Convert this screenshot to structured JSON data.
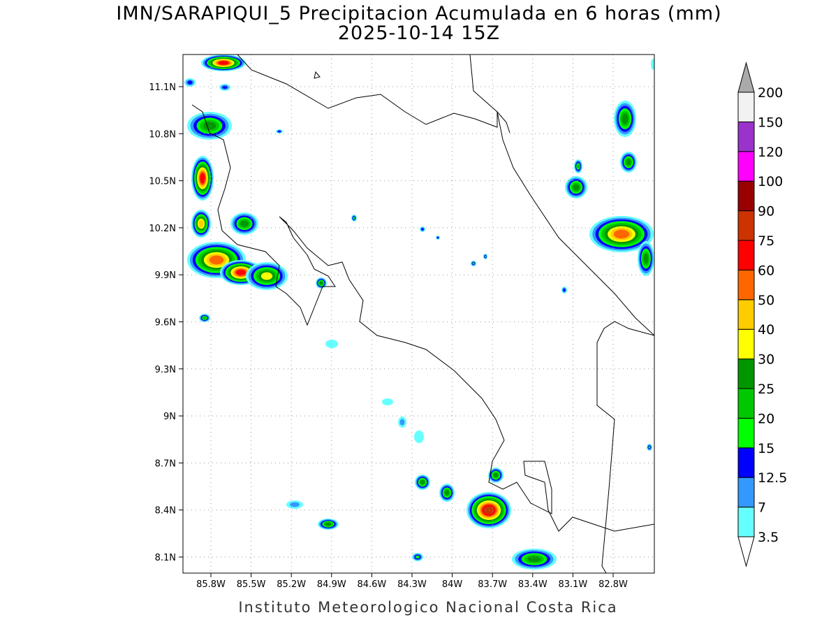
{
  "title": "IMN/SARAPIQUI_5 Precipitacion Acumulada en 6 horas (mm)",
  "subtitle": "2025-10-14 15Z",
  "map": {
    "lon_labels": [
      "85.8W",
      "85.5W",
      "85.2W",
      "84.9W",
      "84.6W",
      "84.3W",
      "84W",
      "83.7W",
      "83.4W",
      "83.1W",
      "82.8W"
    ],
    "lat_labels": [
      "11.1N",
      "10.8N",
      "10.5N",
      "10.2N",
      "9.9N",
      "9.6N",
      "9.3N",
      "9N",
      "8.7N",
      "8.4N",
      "8.1N"
    ],
    "grid": true
  },
  "colorbar": {
    "levels": [
      3.5,
      7,
      12.5,
      15,
      20,
      25,
      30,
      40,
      50,
      60,
      75,
      90,
      100,
      120,
      150,
      200
    ],
    "colors": [
      "#66ffff",
      "#3399ff",
      "#0000ff",
      "#00ff00",
      "#00c800",
      "#009600",
      "#ffff00",
      "#ffcc00",
      "#ff6600",
      "#ff0000",
      "#cc3300",
      "#990000",
      "#ff00ff",
      "#9933cc",
      "#f2f2f2"
    ],
    "under_color": "#ffffff",
    "over_color": "#aaaaaa"
  },
  "footer": "Instituto Meteorologico Nacional Costa Rica"
}
